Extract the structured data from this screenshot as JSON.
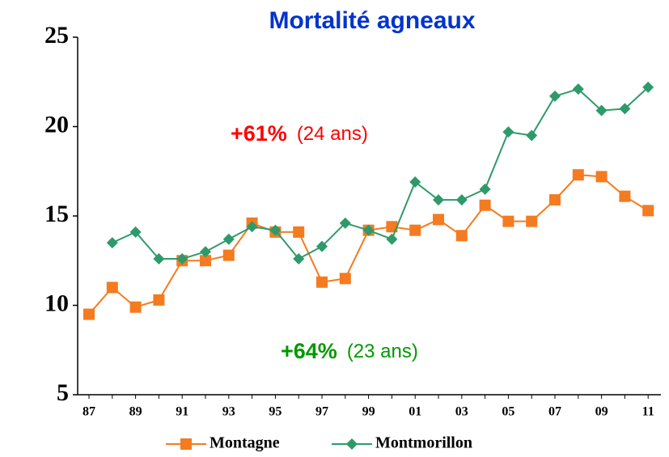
{
  "chart_data": {
    "type": "line",
    "title": "Mortalité agneaux",
    "categories": [
      "87",
      null,
      "89",
      null,
      "91",
      null,
      "93",
      null,
      "95",
      null,
      "97",
      null,
      "99",
      null,
      "01",
      null,
      "03",
      null,
      "05",
      null,
      "07",
      null,
      "09",
      null,
      "11"
    ],
    "series": [
      {
        "name": "Montagne",
        "color": "#f47b20",
        "marker": "square",
        "values": [
          9.5,
          11.0,
          9.9,
          10.3,
          12.5,
          12.5,
          12.8,
          14.6,
          14.1,
          14.1,
          11.3,
          11.5,
          14.2,
          14.4,
          14.2,
          14.8,
          13.9,
          15.6,
          14.7,
          14.7,
          15.9,
          17.3,
          17.2,
          16.1,
          15.3
        ]
      },
      {
        "name": "Montmorillon",
        "color": "#2e9a6b",
        "marker": "diamond",
        "values": [
          null,
          13.5,
          14.1,
          12.6,
          12.6,
          13.0,
          13.7,
          14.4,
          14.2,
          12.6,
          13.3,
          14.6,
          14.2,
          13.7,
          16.9,
          15.9,
          15.9,
          16.5,
          19.7,
          19.5,
          21.7,
          22.1,
          20.9,
          21.0,
          22.2
        ]
      }
    ],
    "ylim": [
      5,
      25
    ],
    "yticks": [
      5,
      10,
      15,
      20,
      25
    ],
    "annotations": [
      {
        "bold": "+61%",
        "text": "(24 ans)",
        "color": "#ff0000"
      },
      {
        "bold": "+64%",
        "text": "(23 ans)",
        "color": "#009900"
      }
    ]
  }
}
